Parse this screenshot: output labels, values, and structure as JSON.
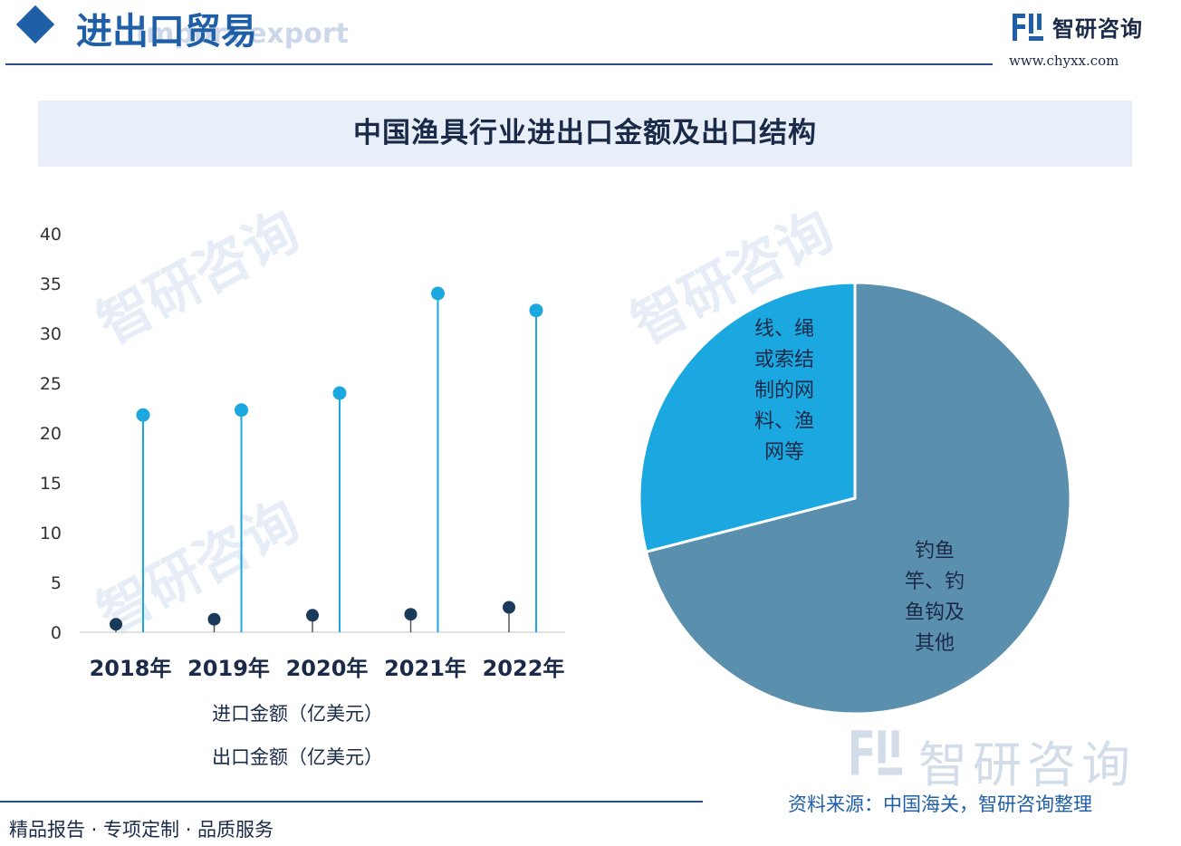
{
  "header": {
    "title": "进出口贸易",
    "subtitle": "Import export",
    "brand_name": "智研咨询",
    "brand_url": "www.chyxx.com"
  },
  "colors": {
    "brand_blue": "#1f5fa8",
    "import_color": "#1a3a5c",
    "export_color": "#1ba8e0",
    "pie_other_color": "#5b8fae",
    "pie_lines_color": "#1ba8e0"
  },
  "chart_data": [
    {
      "type": "lollipop",
      "title": "中国渔具行业进出口金额及出口结构",
      "categories": [
        "2018年",
        "2019年",
        "2020年",
        "2021年",
        "2022年"
      ],
      "series": [
        {
          "name": "进口金额（亿美元）",
          "values": [
            0.8,
            1.3,
            1.7,
            1.8,
            2.5
          ]
        },
        {
          "name": "出口金额（亿美元）",
          "values": [
            21.8,
            22.3,
            24.0,
            34.0,
            32.3
          ]
        }
      ],
      "yticks": [
        "0",
        "5",
        "10",
        "15",
        "20",
        "25",
        "30",
        "35",
        "40"
      ],
      "ylim": [
        0,
        40
      ],
      "grid": false,
      "legend_position": "bottom"
    },
    {
      "type": "pie",
      "slices": [
        {
          "label": "钓鱼竿、钓鱼钩及其他",
          "value": 71
        },
        {
          "label": "线、绳或索结制的网料、渔网等",
          "value": 29
        }
      ],
      "pie_label_lines": [
        [
          "钓鱼",
          "竿、钓",
          "鱼钩及",
          "其他"
        ],
        [
          "线、绳",
          "或索结",
          "制的网",
          "料、渔",
          "网等"
        ]
      ]
    }
  ],
  "footer": {
    "tagline": "精品报告 · 专项定制 · 品质服务",
    "source": "资料来源：中国海关，智研咨询整理"
  }
}
